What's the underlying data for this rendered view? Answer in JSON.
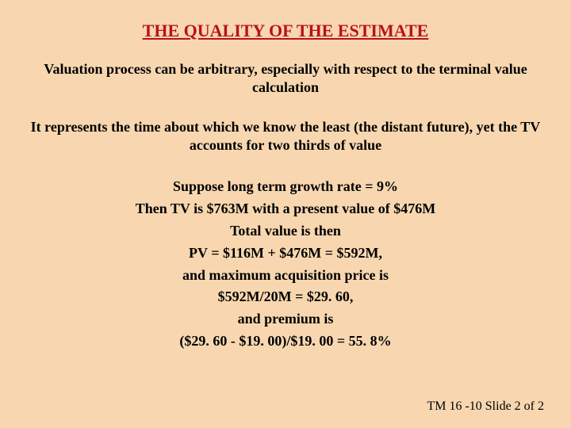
{
  "colors": {
    "background": "#f8d7b0",
    "title_color": "#b8111f",
    "body_color": "#000000"
  },
  "typography": {
    "title_fontsize_pt": 17,
    "body_fontsize_pt": 14,
    "font_family": "Times New Roman",
    "title_bold": true,
    "body_bold": true,
    "title_underline": true
  },
  "title": "THE QUALITY OF THE ESTIMATE",
  "para1": "Valuation process can be arbitrary, especially with respect to the terminal value calculation",
  "para2": "It represents the time about which we know the least (the distant future), yet the TV accounts for two thirds of value",
  "lines": {
    "l1": "Suppose long term growth rate = 9%",
    "l2": "Then TV is $763M with a present value of $476M",
    "l3": "Total value is then",
    "l4": "PV = $116M + $476M = $592M,",
    "l5": "and maximum acquisition price is",
    "l6": "$592M/20M = $29. 60,",
    "l7": "and premium is",
    "l8": "($29. 60 - $19. 00)/$19. 00 = 55. 8%"
  },
  "footer": "TM 16 -10  Slide 2 of 2"
}
